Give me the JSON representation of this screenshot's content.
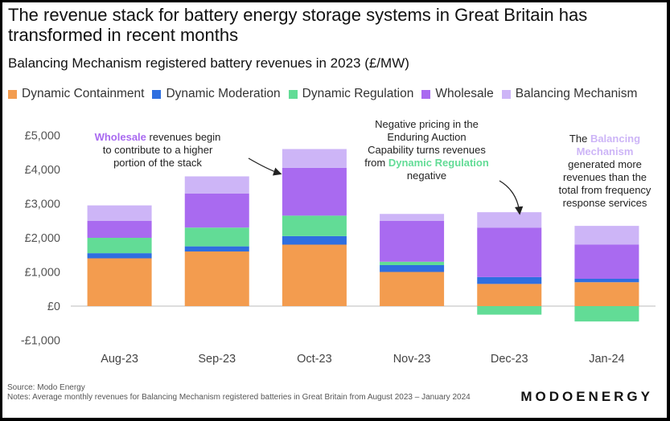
{
  "colors": {
    "dynamic_containment": "#F39C4F",
    "dynamic_moderation": "#2F6FE0",
    "dynamic_regulation": "#62DC96",
    "wholesale": "#A96AF0",
    "balancing_mechanism": "#CDB5F7"
  },
  "chart_data": {
    "type": "bar",
    "stacked": true,
    "title": "The revenue stack for battery energy storage systems in Great Britain has transformed in recent months",
    "subtitle": "Balancing Mechanism registered battery revenues in 2023 (£/MW)",
    "categories": [
      "Aug-23",
      "Sep-23",
      "Oct-23",
      "Nov-23",
      "Dec-23",
      "Jan-24"
    ],
    "ylim": [
      -1000,
      5000
    ],
    "yticks": [
      -1000,
      0,
      1000,
      2000,
      3000,
      4000,
      5000
    ],
    "ytick_labels": [
      "-£1,000",
      "£0",
      "£1,000",
      "£2,000",
      "£3,000",
      "£4,000",
      "£5,000"
    ],
    "grid": false,
    "legend_position": "top",
    "series": [
      {
        "name": "Dynamic Containment",
        "color": "#F39C4F",
        "values": [
          1400,
          1600,
          1800,
          1000,
          650,
          700
        ]
      },
      {
        "name": "Dynamic Moderation",
        "color": "#2F6FE0",
        "values": [
          150,
          150,
          250,
          200,
          200,
          100
        ]
      },
      {
        "name": "Dynamic Regulation",
        "color": "#62DC96",
        "values": [
          450,
          550,
          600,
          100,
          -250,
          -450
        ]
      },
      {
        "name": "Wholesale",
        "color": "#A96AF0",
        "values": [
          500,
          1000,
          1400,
          1200,
          1450,
          1000
        ]
      },
      {
        "name": "Balancing Mechanism",
        "color": "#CDB5F7",
        "values": [
          450,
          500,
          550,
          200,
          450,
          550
        ]
      }
    ],
    "annotations": [
      {
        "highlight": "Wholesale",
        "text": " revenues begin to contribute to a higher portion of the stack"
      },
      {
        "text_before": "Negative pricing in the Enduring Auction Capability turns revenues from ",
        "highlight": "Dynamic Regulation",
        "text_after": " negative"
      },
      {
        "text_before": "The ",
        "highlight": "Balancing Mechanism",
        "text_after": " generated more revenues than the total from frequency response services"
      }
    ],
    "source": "Source: Modo Energy",
    "notes": "Notes: Average monthly revenues for Balancing Mechanism registered batteries in Great Britain from August 2023 – January 2024",
    "brand": "MODOENERGY"
  }
}
